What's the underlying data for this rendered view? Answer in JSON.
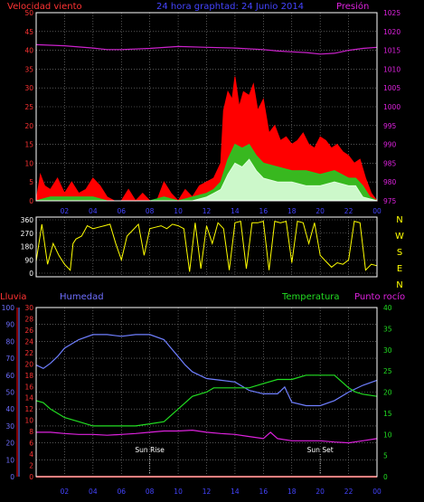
{
  "colors": {
    "background": "#000000",
    "frame": "#ffffff",
    "grid": "#888888",
    "wind_gust": "#ff0000",
    "wind_avg": "#22cc22",
    "wind_min": "#ddffdd",
    "pressure": "#cc22cc",
    "direction": "#ffff00",
    "humidity": "#6f7fff",
    "temperature": "#22dd22",
    "dewpoint": "#dd22dd",
    "rain": "#ff0000",
    "text_red": "#ff3333",
    "text_blue": "#6f6fff",
    "text_green": "#22dd22",
    "text_magenta": "#dd22dd"
  },
  "chart_data": [
    {
      "type": "area",
      "id": "wind-pressure",
      "title": "24 hora graphtad:  24 Junio 2014",
      "left_label": "Velocidad viento",
      "right_label": "Presión",
      "ylim_left": [
        0,
        50
      ],
      "yticks_left": [
        "0",
        "5",
        "10",
        "15",
        "20",
        "25",
        "30",
        "35",
        "40",
        "45",
        "50"
      ],
      "ylim_right": [
        975,
        1025
      ],
      "yticks_right": [
        "975",
        "980",
        "985",
        "990",
        "995",
        "1000",
        "1005",
        "1010",
        "1015",
        "1020",
        "1025"
      ],
      "xlabels": [
        "02",
        "04",
        "06",
        "08",
        "10",
        "12",
        "14",
        "16",
        "18",
        "20",
        "22",
        "00"
      ],
      "series": [
        {
          "key": "gust",
          "color_key": "wind_gust",
          "axis": "left",
          "x": [
            0,
            0.3,
            0.6,
            1,
            1.5,
            2,
            2.5,
            3,
            3.5,
            4,
            4.5,
            5,
            5.5,
            6,
            6.5,
            7,
            7.5,
            8,
            8.5,
            9,
            9.5,
            10,
            10.5,
            11,
            11.5,
            12,
            12.5,
            13,
            13.2,
            13.5,
            13.8,
            14,
            14.3,
            14.6,
            15,
            15.3,
            15.6,
            16,
            16.4,
            16.8,
            17.2,
            17.6,
            18,
            18.4,
            18.8,
            19.2,
            19.6,
            20,
            20.4,
            20.8,
            21.2,
            21.6,
            22,
            22.4,
            22.8,
            23.2,
            23.6,
            24
          ],
          "values": [
            0,
            7,
            4,
            3,
            6,
            2,
            5,
            2,
            3,
            6,
            4,
            1,
            0,
            0,
            3,
            0,
            2,
            0,
            0,
            5,
            2,
            0,
            3,
            1,
            4,
            5,
            6,
            10,
            24,
            29,
            27,
            33,
            25,
            29,
            28,
            31,
            24,
            27,
            18,
            20,
            16,
            17,
            15,
            16,
            18,
            15,
            14,
            17,
            16,
            14,
            15,
            13,
            12,
            10,
            11,
            6,
            2,
            0
          ]
        },
        {
          "key": "avg",
          "color_key": "wind_avg",
          "axis": "left",
          "x": [
            0,
            1,
            2,
            3,
            4,
            5,
            6,
            7,
            8,
            9,
            10,
            11,
            12,
            12.5,
            13,
            13.5,
            14,
            14.5,
            15,
            15.5,
            16,
            17,
            18,
            19,
            20,
            21,
            22,
            22.5,
            23,
            23.5,
            24
          ],
          "values": [
            0,
            1,
            1,
            1,
            1,
            0,
            0,
            0,
            0,
            1,
            0,
            1,
            2,
            3,
            5,
            11,
            15,
            14,
            15,
            12,
            10,
            9,
            8,
            8,
            7,
            8,
            6,
            6,
            4,
            1,
            0
          ]
        },
        {
          "key": "min",
          "color_key": "wind_min",
          "axis": "left",
          "x": [
            0,
            4,
            8,
            10,
            11,
            12,
            12.5,
            13,
            13.5,
            14,
            14.5,
            15,
            15.5,
            16,
            17,
            18,
            19,
            20,
            21,
            22,
            22.5,
            23,
            24
          ],
          "values": [
            0,
            0,
            0,
            0,
            0,
            1,
            2,
            3,
            7,
            10,
            9,
            11,
            8,
            6,
            5,
            5,
            4,
            4,
            5,
            4,
            4,
            1,
            0
          ]
        },
        {
          "key": "pressure",
          "color_key": "pressure",
          "axis": "right",
          "x": [
            0,
            2,
            4,
            5,
            6,
            8,
            10,
            12,
            14,
            16,
            17,
            18,
            19,
            20,
            21,
            22,
            23,
            24
          ],
          "values": [
            1016.5,
            1016.2,
            1015.6,
            1015.2,
            1015.2,
            1015.5,
            1016,
            1015.8,
            1015.6,
            1015.2,
            1014.8,
            1014.6,
            1014.4,
            1014,
            1014.2,
            1015,
            1015.5,
            1015.8
          ]
        }
      ]
    },
    {
      "type": "line",
      "id": "wind-direction",
      "ylim": [
        0,
        360
      ],
      "yticks": [
        "0",
        "90",
        "180",
        "270",
        "360"
      ],
      "compass": [
        "N",
        "W",
        "S",
        "E",
        "N"
      ],
      "series": [
        {
          "key": "direction",
          "color_key": "direction",
          "x": [
            0,
            0.4,
            0.8,
            1.2,
            1.6,
            2,
            2.4,
            2.6,
            2.8,
            3.2,
            3.6,
            4,
            4.4,
            4.8,
            5.2,
            5.6,
            6,
            6.4,
            6.8,
            7.2,
            7.6,
            8,
            8.4,
            8.8,
            9.2,
            9.6,
            10,
            10.4,
            10.8,
            11.2,
            11.6,
            12,
            12.4,
            12.8,
            13.2,
            13.6,
            14,
            14.4,
            14.8,
            15.2,
            15.6,
            16,
            16.4,
            16.8,
            17.2,
            17.6,
            18,
            18.4,
            18.8,
            19.2,
            19.6,
            20,
            20.4,
            20.8,
            21.2,
            21.6,
            22,
            22.4,
            22.8,
            23.2,
            23.6,
            24
          ],
          "values": [
            80,
            330,
            60,
            200,
            120,
            60,
            20,
            200,
            230,
            250,
            320,
            300,
            310,
            320,
            330,
            200,
            90,
            250,
            290,
            330,
            120,
            300,
            310,
            320,
            300,
            330,
            320,
            300,
            10,
            340,
            30,
            320,
            200,
            340,
            300,
            20,
            340,
            350,
            30,
            340,
            340,
            350,
            20,
            350,
            340,
            350,
            70,
            350,
            340,
            200,
            340,
            120,
            80,
            40,
            70,
            60,
            90,
            350,
            340,
            20,
            60,
            50
          ]
        }
      ]
    },
    {
      "type": "line",
      "id": "humidity-temperature",
      "labels": {
        "rain": "Lluvia",
        "humidity": "Humedad",
        "temperature": "Temperatura",
        "dewpoint": "Punto rocío"
      },
      "ylim_humidity": [
        0,
        100
      ],
      "yticks_humidity": [
        "0",
        "10",
        "20",
        "30",
        "40",
        "50",
        "60",
        "70",
        "80",
        "90",
        "100"
      ],
      "ylim_rain": [
        0,
        30
      ],
      "yticks_rain": [
        "0",
        "2",
        "4",
        "6",
        "8",
        "10",
        "12",
        "14",
        "16",
        "18",
        "20",
        "22",
        "24",
        "26",
        "28",
        "30"
      ],
      "ylim_temp": [
        0,
        40
      ],
      "yticks_temp": [
        "0",
        "5",
        "10",
        "15",
        "20",
        "25",
        "30",
        "35",
        "40"
      ],
      "xlabels": [
        "02",
        "04",
        "06",
        "08",
        "10",
        "12",
        "14",
        "16",
        "18",
        "20",
        "22",
        "00"
      ],
      "annotations": [
        {
          "label": "Sun Rise",
          "x": 8
        },
        {
          "label": "Sun Set",
          "x": 20
        }
      ],
      "series": [
        {
          "key": "humidity",
          "color_key": "humidity",
          "axis": "humidity",
          "x": [
            0,
            0.5,
            1,
            1.5,
            2,
            3,
            4,
            5,
            6,
            7,
            8,
            9,
            9.5,
            10,
            10.5,
            11,
            12,
            13,
            14,
            15,
            16,
            17,
            17.5,
            18,
            19,
            20,
            21,
            22,
            23,
            24
          ],
          "values": [
            66,
            64,
            67,
            71,
            76,
            81,
            84,
            84,
            83,
            84,
            84,
            81,
            76,
            71,
            66,
            62,
            58,
            57,
            56,
            51,
            49,
            49,
            53,
            44,
            42,
            42,
            45,
            50,
            54,
            57
          ]
        },
        {
          "key": "temperature",
          "color_key": "temperature",
          "axis": "temp",
          "x": [
            0,
            0.5,
            1,
            2,
            3,
            4,
            5,
            6,
            7,
            8,
            9,
            10,
            11,
            12,
            12.5,
            13,
            14,
            15,
            16,
            17,
            18,
            19,
            20,
            21,
            22,
            22.5,
            23,
            24
          ],
          "values": [
            18,
            17.5,
            16,
            14,
            13,
            12,
            12,
            12,
            12,
            12.5,
            13,
            16,
            19,
            20,
            21,
            21,
            21,
            21,
            22,
            23,
            23,
            24,
            24,
            24,
            21,
            20,
            19.5,
            19
          ]
        },
        {
          "key": "dewpoint",
          "color_key": "dewpoint",
          "axis": "temp",
          "x": [
            0,
            1,
            2,
            3,
            4,
            5,
            6,
            7,
            8,
            9,
            10,
            11,
            12,
            13,
            14,
            15,
            16,
            16.5,
            17,
            18,
            19,
            20,
            21,
            22,
            23,
            24
          ],
          "values": [
            10.5,
            10.5,
            10.2,
            10,
            10,
            9.8,
            10,
            10.2,
            10.5,
            10.8,
            10.8,
            11,
            10.5,
            10.2,
            10,
            9.5,
            9,
            10.5,
            9,
            8.5,
            8.5,
            8.5,
            8.2,
            8,
            8.5,
            9
          ]
        },
        {
          "key": "rain",
          "color_key": "rain",
          "axis": "rain",
          "x": [
            0,
            24
          ],
          "values": [
            0,
            0
          ]
        }
      ]
    }
  ]
}
